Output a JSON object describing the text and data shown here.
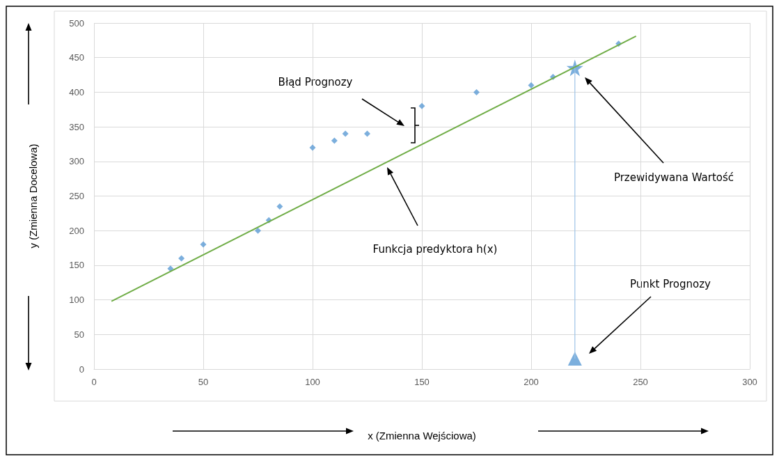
{
  "chart_data": {
    "type": "scatter",
    "xlabel": "x (Zmienna Wejściowa)",
    "ylabel": "y (Zmienna Docelowa)",
    "xlim": [
      0,
      300
    ],
    "xticks": [
      0,
      50,
      100,
      150,
      200,
      250,
      300
    ],
    "ylim": [
      0,
      500
    ],
    "yticks": [
      0,
      50,
      100,
      150,
      200,
      250,
      300,
      350,
      400,
      450,
      500
    ],
    "grid": true,
    "series": [
      {
        "marker": "diamond",
        "color": "#5b9bd5",
        "x": [
          35,
          40,
          50,
          75,
          80,
          85,
          100,
          110,
          115,
          125,
          150,
          175,
          200,
          210,
          240
        ],
        "values": [
          145,
          160,
          180,
          200,
          215,
          235,
          320,
          330,
          340,
          340,
          380,
          400,
          410,
          422,
          470
        ]
      },
      {
        "type": "line",
        "marker": "none",
        "color": "#70ad47",
        "x": [
          8,
          248
        ],
        "values": [
          98,
          481
        ]
      },
      {
        "type": "line",
        "marker": "none",
        "color": "#9dc3e6",
        "x": [
          220,
          220
        ],
        "values": [
          15,
          435
        ]
      },
      {
        "type": "scatter",
        "marker": "star",
        "color": "#5b9bd5",
        "x": [
          220
        ],
        "values": [
          435
        ]
      },
      {
        "type": "scatter",
        "marker": "triangle",
        "color": "#5b9bd5",
        "x": [
          220
        ],
        "values": [
          15
        ]
      }
    ],
    "annotations": [
      "Błąd Prognozy",
      "Funkcja predyktora h(x)",
      "Przewidywana Wartość",
      "Punkt Prognozy"
    ]
  }
}
